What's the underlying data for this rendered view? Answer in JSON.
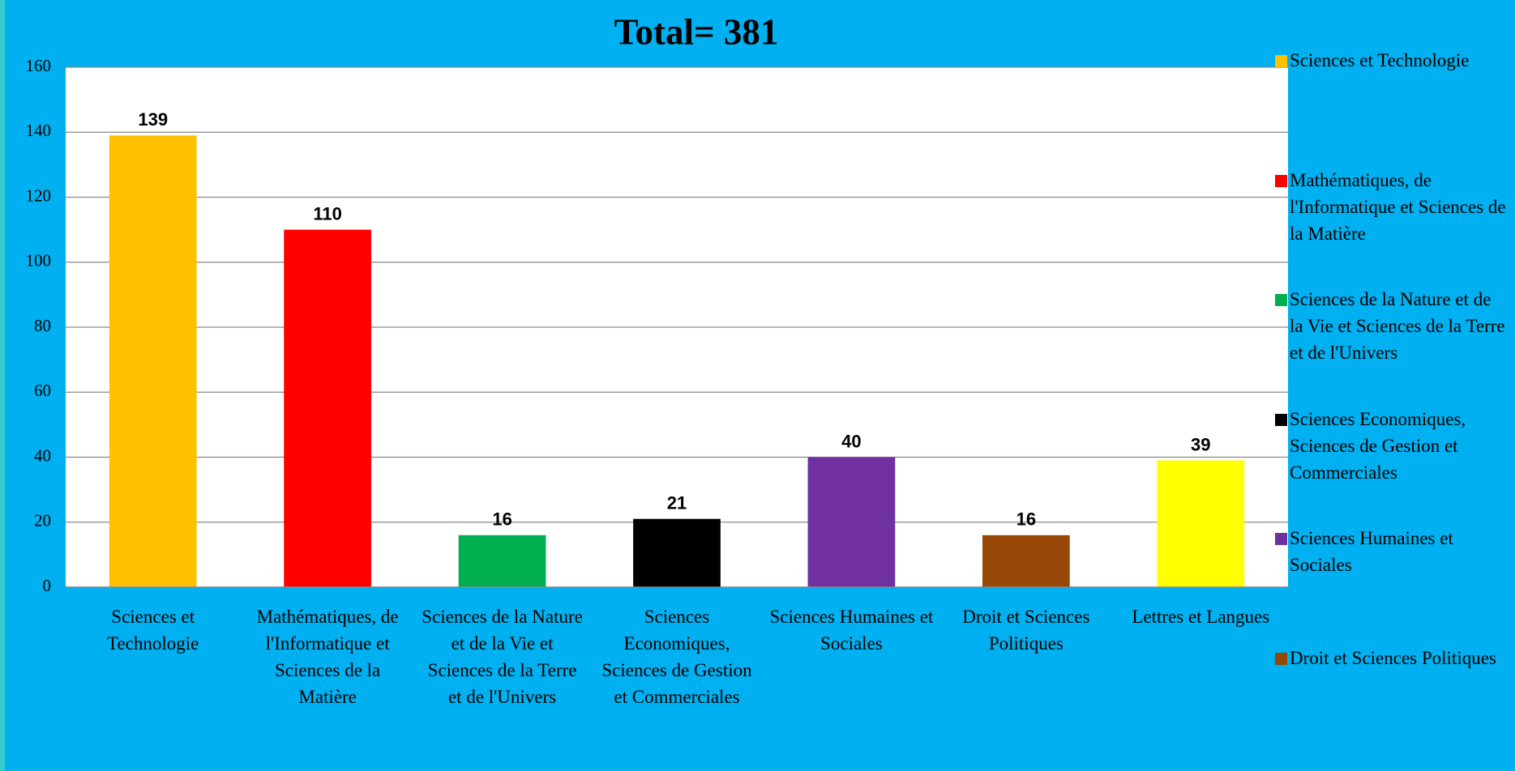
{
  "chart_data": {
    "type": "bar",
    "title": "Total= 381",
    "categories": [
      "Sciences et Technologie",
      "Mathématiques, de l'Informatique et Sciences de la Matière",
      "Sciences de la Nature et de la Vie et Sciences de la Terre et de l'Univers",
      "Sciences Economiques, Sciences de Gestion et Commerciales",
      "Sciences Humaines et Sociales",
      "Droit et Sciences Politiques",
      "Lettres et Langues"
    ],
    "values": [
      139,
      110,
      16,
      21,
      40,
      16,
      39
    ],
    "colors": [
      "#ffc000",
      "#ff0000",
      "#00b050",
      "#000000",
      "#7030a0",
      "#974706",
      "#ffff00"
    ],
    "legend": [
      {
        "name": "Sciences et Technologie",
        "color": "#ffc000"
      },
      {
        "name": "Mathématiques, de l'Informatique et Sciences de la Matière",
        "color": "#ff0000"
      },
      {
        "name": "Sciences de la Nature et de la Vie et Sciences de la Terre et de l'Univers",
        "color": "#00b050"
      },
      {
        "name": "Sciences Economiques, Sciences de Gestion et Commerciales",
        "color": "#000000"
      },
      {
        "name": "Sciences Humaines et Sociales",
        "color": "#7030a0"
      },
      {
        "name": "Droit et Sciences Politiques",
        "color": "#974706"
      }
    ],
    "legend_position": "right",
    "ylim": [
      0,
      160
    ],
    "yticks": [
      0,
      20,
      40,
      60,
      80,
      100,
      120,
      140,
      160
    ],
    "grid": true
  }
}
